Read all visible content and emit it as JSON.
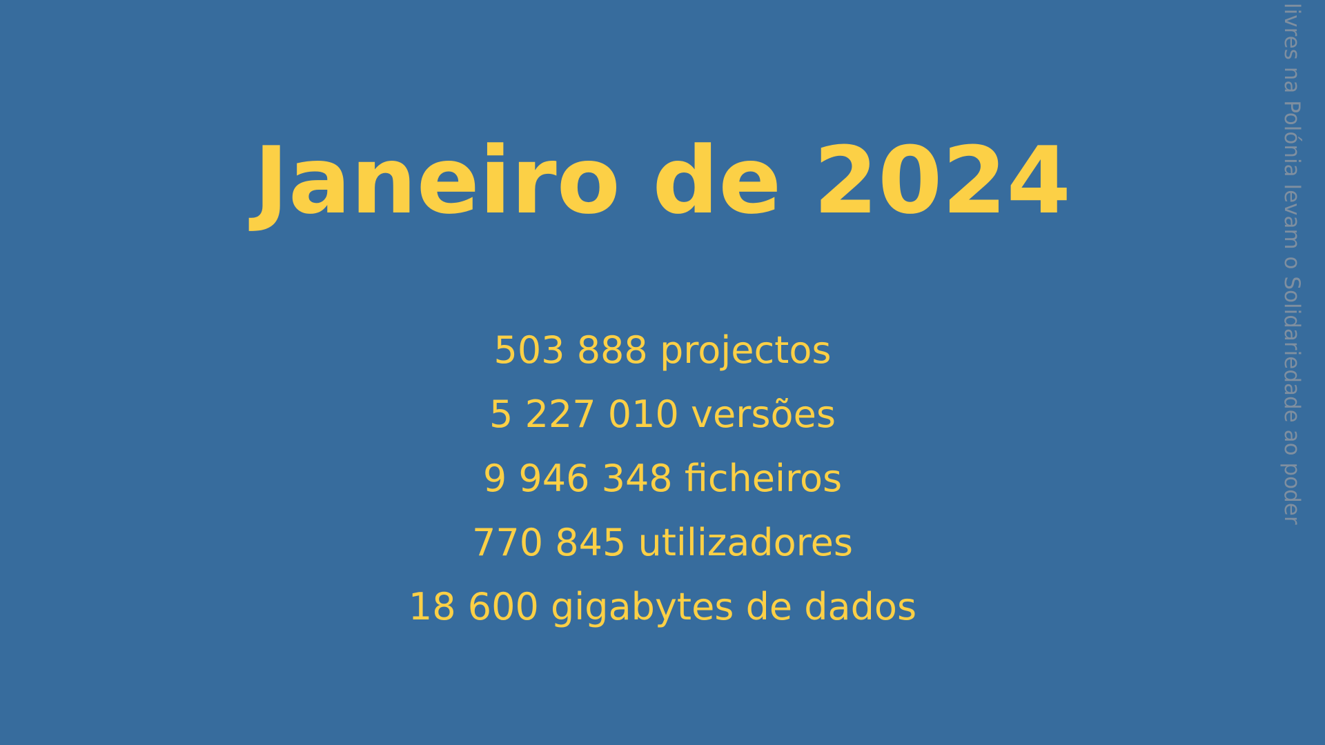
{
  "slide": {
    "title": "Janeiro de 2024",
    "stats": [
      "503 888 projectos",
      "5 227 010 versões",
      "9 946 348 ficheiros",
      "770 845 utilizadores",
      "18 600 gigabytes de dados"
    ],
    "side_text": "livres na Polónia levam o Solidariedade ao poder"
  },
  "colors": {
    "background": "#376c9d",
    "text": "#fcd046",
    "side_text": "#7f8fa0"
  }
}
